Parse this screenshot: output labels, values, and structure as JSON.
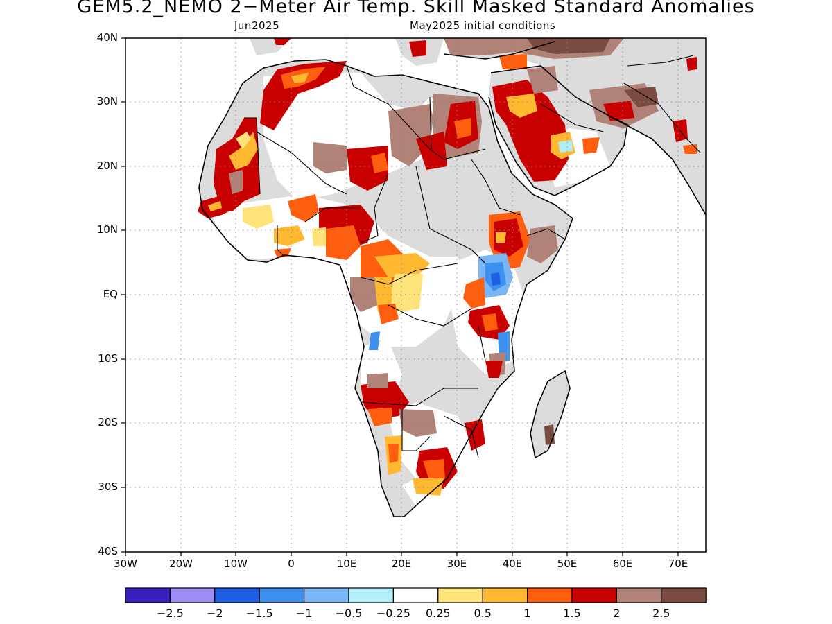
{
  "title": "GEM5.2_NEMO 2−Meter Air Temp. Skill Masked Standard Anomalies",
  "subtitle_left": "Jun2025",
  "subtitle_right": "May2025 initial conditions",
  "lat_labels": [
    "40N",
    "30N",
    "20N",
    "10N",
    "EQ",
    "10S",
    "20S",
    "30S",
    "40S"
  ],
  "lon_labels": [
    "30W",
    "20W",
    "10W",
    "0",
    "10E",
    "20E",
    "30E",
    "40E",
    "50E",
    "60E",
    "70E"
  ],
  "map_extent": {
    "lon": [
      -30,
      75
    ],
    "lat": [
      -40,
      40
    ]
  },
  "grid": "dotted",
  "colorbar": {
    "colors": [
      "#3a1fbf",
      "#9f8cf5",
      "#1f5fe6",
      "#3d8ff0",
      "#78b6f6",
      "#b2eefa",
      "#ffffff",
      "#ffe27a",
      "#ffb931",
      "#ff5e0e",
      "#c80000",
      "#b08278",
      "#7a4b40"
    ],
    "labels": [
      "−2.5",
      "−2",
      "−1.5",
      "−1",
      "−0.5",
      "−0.25",
      "0.25",
      "0.5",
      "1",
      "1.5",
      "2",
      "2.5"
    ]
  },
  "mask_color": "#dcdcdc",
  "land_color": "#ffffff"
}
